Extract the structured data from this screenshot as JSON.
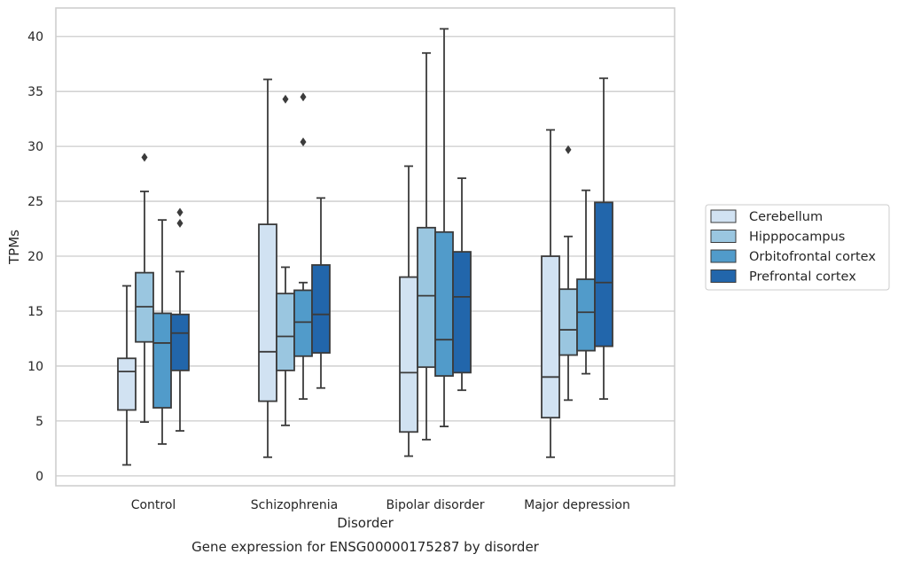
{
  "chart_data": {
    "type": "boxplot",
    "title": "Gene expression for ENSG00000175287 by disorder",
    "xlabel": "Disorder",
    "ylabel": "TPMs",
    "ylim": [
      -0.9,
      42.6
    ],
    "yticks": [
      0,
      5,
      10,
      15,
      20,
      25,
      30,
      35,
      40
    ],
    "grid": true,
    "legend_position": "right",
    "categories": [
      "Control",
      "Schizophrenia",
      "Bipolar disorder",
      "Major depression"
    ],
    "series": [
      {
        "name": "Cerebellum",
        "color": "#d1e2f2",
        "boxes": [
          {
            "whislo": 1.0,
            "q1": 6.0,
            "med": 9.5,
            "q3": 10.7,
            "whishi": 17.3,
            "fliers": []
          },
          {
            "whislo": 1.7,
            "q1": 6.8,
            "med": 11.3,
            "q3": 22.9,
            "whishi": 36.1,
            "fliers": []
          },
          {
            "whislo": 1.8,
            "q1": 4.0,
            "med": 9.4,
            "q3": 18.1,
            "whishi": 28.2,
            "fliers": []
          },
          {
            "whislo": 1.7,
            "q1": 5.3,
            "med": 9.0,
            "q3": 20.0,
            "whishi": 31.5,
            "fliers": []
          }
        ]
      },
      {
        "name": "Hipppocampus",
        "color": "#9ac6e0",
        "boxes": [
          {
            "whislo": 4.9,
            "q1": 12.2,
            "med": 15.4,
            "q3": 18.5,
            "whishi": 25.9,
            "fliers": [
              29.0
            ]
          },
          {
            "whislo": 4.6,
            "q1": 9.6,
            "med": 12.7,
            "q3": 16.6,
            "whishi": 19.0,
            "fliers": [
              34.3
            ]
          },
          {
            "whislo": 3.3,
            "q1": 9.9,
            "med": 16.4,
            "q3": 22.6,
            "whishi": 38.5,
            "fliers": []
          },
          {
            "whislo": 6.9,
            "q1": 11.0,
            "med": 13.3,
            "q3": 17.0,
            "whishi": 21.8,
            "fliers": [
              29.7
            ]
          }
        ]
      },
      {
        "name": "Orbitofrontal cortex",
        "color": "#519bca",
        "boxes": [
          {
            "whislo": 2.9,
            "q1": 6.2,
            "med": 12.1,
            "q3": 14.8,
            "whishi": 23.3,
            "fliers": []
          },
          {
            "whislo": 7.0,
            "q1": 10.9,
            "med": 14.0,
            "q3": 16.9,
            "whishi": 17.6,
            "fliers": [
              30.4,
              34.5
            ]
          },
          {
            "whislo": 4.5,
            "q1": 9.1,
            "med": 12.4,
            "q3": 22.2,
            "whishi": 40.7,
            "fliers": []
          },
          {
            "whislo": 9.3,
            "q1": 11.4,
            "med": 14.9,
            "q3": 17.9,
            "whishi": 26.0,
            "fliers": []
          }
        ]
      },
      {
        "name": "Prefrontal cortex",
        "color": "#2266ab",
        "boxes": [
          {
            "whislo": 4.1,
            "q1": 9.6,
            "med": 13.0,
            "q3": 14.7,
            "whishi": 18.6,
            "fliers": [
              23.0,
              24.0
            ]
          },
          {
            "whislo": 8.0,
            "q1": 11.2,
            "med": 14.7,
            "q3": 19.2,
            "whishi": 25.3,
            "fliers": []
          },
          {
            "whislo": 7.8,
            "q1": 9.4,
            "med": 16.3,
            "q3": 20.4,
            "whishi": 27.1,
            "fliers": []
          },
          {
            "whislo": 7.0,
            "q1": 11.8,
            "med": 17.6,
            "q3": 24.9,
            "whishi": 36.2,
            "fliers": []
          }
        ]
      }
    ],
    "style": {
      "grid_color": "#cccccc",
      "frame_color": "#cccccc",
      "line_color": "#3b3b3b",
      "text_color": "#262626"
    }
  }
}
